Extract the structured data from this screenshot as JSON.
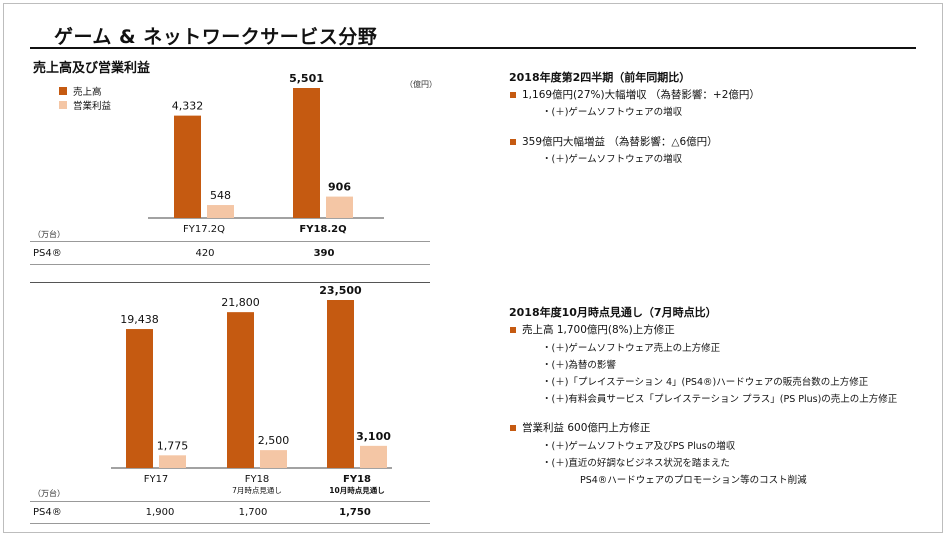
{
  "title": "ゲーム & ネットワークサービス分野",
  "subtitle": "売上高及び営業利益",
  "legend": {
    "sales": "売上高",
    "profit": "営業利益"
  },
  "colors": {
    "sales": "#c55a11",
    "profit": "#f4c6a5",
    "bullet": "#c55a11"
  },
  "unit_yen": "（億円）",
  "unit_units": "（万台）",
  "chart_data": [
    {
      "type": "bar",
      "categories": [
        "FY17.2Q",
        "FY18.2Q"
      ],
      "series": [
        {
          "name": "売上高",
          "values": [
            4332,
            5501
          ]
        },
        {
          "name": "営業利益",
          "values": [
            548,
            906
          ]
        }
      ],
      "value_labels": [
        [
          "4,332",
          "5,501"
        ],
        [
          "548",
          "906"
        ]
      ],
      "bold_category": 1,
      "ylim": [
        0,
        5501
      ]
    },
    {
      "type": "bar",
      "categories": [
        "FY17",
        "FY18",
        "FY18"
      ],
      "category_sublabels": [
        "",
        "7月時点見通し",
        "10月時点見通し"
      ],
      "series": [
        {
          "name": "売上高",
          "values": [
            19438,
            21800,
            23500
          ]
        },
        {
          "name": "営業利益",
          "values": [
            1775,
            2500,
            3100
          ]
        }
      ],
      "value_labels": [
        [
          "19,438",
          "21,800",
          "23,500"
        ],
        [
          "1,775",
          "2,500",
          "3,100"
        ]
      ],
      "bold_category": 2,
      "ylim": [
        0,
        23500
      ]
    }
  ],
  "table_top": {
    "row_label": "PS4®",
    "values": [
      "420",
      "390"
    ]
  },
  "table_bottom": {
    "row_label": "PS4®",
    "values": [
      "1,900",
      "1,700",
      "1,750"
    ]
  },
  "right_top": {
    "heading": "2018年度第2四半期（前年同期比）",
    "b1": "1,169億円(27%)大幅増収 （為替影響：+2億円）",
    "b1_sub": "・(＋)ゲームソフトウェアの増収",
    "b2": "359億円大幅増益 （為替影響：△6億円）",
    "b2_sub": "・(＋)ゲームソフトウェアの増収"
  },
  "right_bottom": {
    "heading": "2018年度10月時点見通し（7月時点比）",
    "b1": "売上高 1,700億円(8%)上方修正",
    "b1_subs": [
      "・(＋)ゲームソフトウェア売上の上方修正",
      "・(＋)為替の影響",
      "・(＋)「プレイステーション 4」(PS4®)ハードウェアの販売台数の上方修正",
      "・(＋)有料会員サービス「プレイステーション プラス」(PS Plus)の売上の上方修正"
    ],
    "b2": "営業利益 600億円上方修正",
    "b2_subs": [
      "・(＋)ゲームソフトウェア及びPS Plusの増収",
      "・(＋)直近の好調なビジネス状況を踏まえた",
      "PS4®ハードウェアのプロモーション等のコスト削減"
    ]
  }
}
